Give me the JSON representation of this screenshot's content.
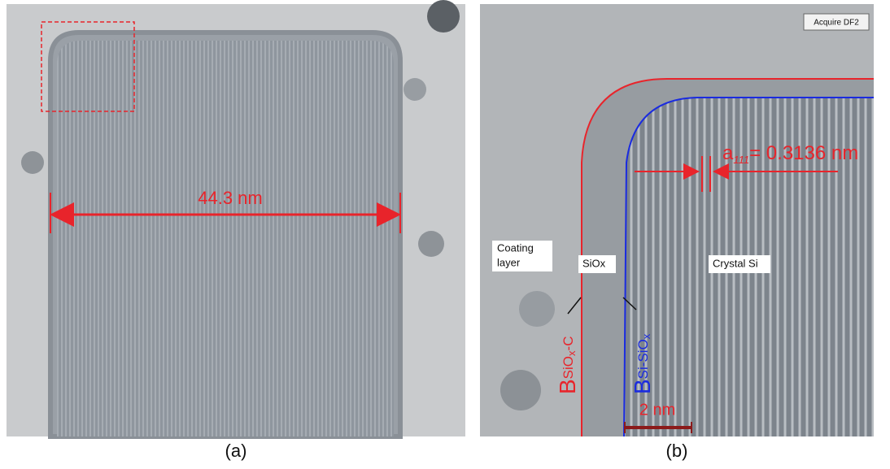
{
  "panels": [
    {
      "label": "(a)",
      "measurement": "44.3 nm"
    },
    {
      "label": "(b)",
      "instrument_tag": "Acquire DF2",
      "lattice": {
        "symbol": "a",
        "subscript": "111",
        "text": "= 0.3136 nm"
      },
      "regions": [
        "Coating",
        "layer",
        "SiOx",
        "Crystal Si"
      ],
      "boundary_outer": {
        "base": "B",
        "sub": "SiO",
        "subsub": "x",
        "tail": "-C"
      },
      "boundary_inner": {
        "base": "B",
        "sub": "Si-SiO",
        "subsub": "x"
      },
      "scale_bar": "2 nm"
    }
  ]
}
